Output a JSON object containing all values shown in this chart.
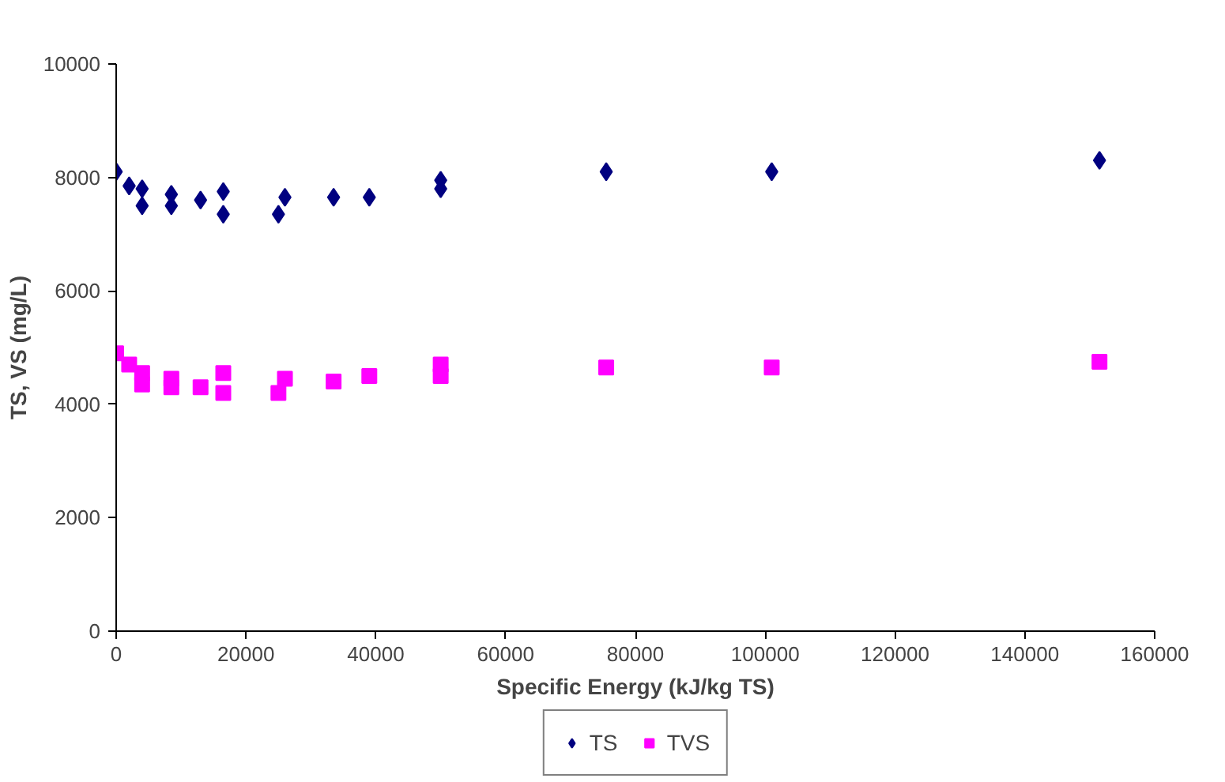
{
  "chart_data": {
    "type": "scatter",
    "xlabel": "Specific Energy (kJ/kg TS)",
    "ylabel": "TS, VS (mg/L)",
    "xlim": [
      0,
      160000
    ],
    "xticks": [
      0,
      20000,
      40000,
      60000,
      80000,
      100000,
      120000,
      140000,
      160000
    ],
    "ylim": [
      0,
      10000
    ],
    "yticks": [
      0,
      2000,
      4000,
      6000,
      8000,
      10000
    ],
    "grid": false,
    "legend": "bottom",
    "series": [
      {
        "name": "TS",
        "color": "#000080",
        "marker": "diamond",
        "x": [
          0,
          2000,
          4000,
          4000,
          8500,
          8500,
          13000,
          16500,
          16500,
          25000,
          26000,
          33500,
          39000,
          50000,
          50000,
          75500,
          101000,
          151500
        ],
        "values": [
          8100,
          7850,
          7500,
          7800,
          7700,
          7500,
          7600,
          7350,
          7750,
          7350,
          7650,
          7650,
          7650,
          7800,
          7950,
          8100,
          8100,
          8300
        ]
      },
      {
        "name": "TVS",
        "color": "#ff00ff",
        "marker": "square",
        "x": [
          0,
          2000,
          4000,
          4000,
          8500,
          8500,
          13000,
          16500,
          16500,
          25000,
          26000,
          33500,
          39000,
          50000,
          50000,
          75500,
          101000,
          151500
        ],
        "values": [
          4900,
          4700,
          4550,
          4350,
          4450,
          4300,
          4300,
          4550,
          4200,
          4200,
          4450,
          4400,
          4500,
          4700,
          4500,
          4650,
          4650,
          4750
        ]
      }
    ]
  }
}
